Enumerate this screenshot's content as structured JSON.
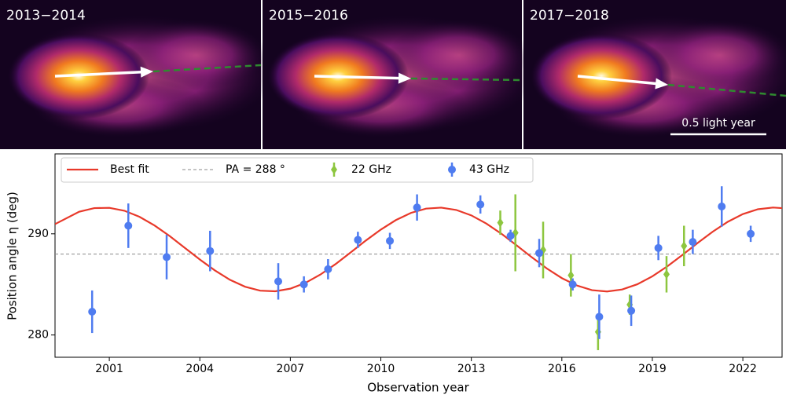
{
  "panels": [
    {
      "label": "2013−2014"
    },
    {
      "label": "2015−2016"
    },
    {
      "label": "2017−2018"
    }
  ],
  "scale_bar": "0.5 light year",
  "chart_data": {
    "type": "scatter",
    "x_label": "Observation year",
    "y_label": "Position angle η (deg)",
    "xlim": [
      1999.2,
      2023.3
    ],
    "ylim": [
      277.8,
      297.9
    ],
    "xticks": [
      2001,
      2004,
      2007,
      2010,
      2013,
      2016,
      2019,
      2022
    ],
    "yticks": [
      280,
      290
    ],
    "hline": {
      "value": 288,
      "label": "PA = 288 °",
      "color": "#888888"
    },
    "fit": {
      "name": "Best fit",
      "color": "#e8392a",
      "x": [
        1999.2,
        2000,
        2000.5,
        2001,
        2001.5,
        2002,
        2002.5,
        2003,
        2003.5,
        2004,
        2004.5,
        2005,
        2005.5,
        2006,
        2006.5,
        2007,
        2007.5,
        2008,
        2008.5,
        2009,
        2009.5,
        2010,
        2010.5,
        2011,
        2011.5,
        2012,
        2012.5,
        2013,
        2013.5,
        2014,
        2014.5,
        2015,
        2015.5,
        2016,
        2016.5,
        2017,
        2017.5,
        2018,
        2018.5,
        2019,
        2019.5,
        2020,
        2020.5,
        2021,
        2021.5,
        2022,
        2022.5,
        2023,
        2023.3
      ],
      "values": [
        290.96,
        292.18,
        292.54,
        292.57,
        292.28,
        291.68,
        290.82,
        289.78,
        288.62,
        287.46,
        286.38,
        285.45,
        284.77,
        284.38,
        284.32,
        284.58,
        285.15,
        285.98,
        287.01,
        288.16,
        289.33,
        290.42,
        291.36,
        292.07,
        292.49,
        292.59,
        292.36,
        291.82,
        291.01,
        290.0,
        288.86,
        287.69,
        286.58,
        285.62,
        284.89,
        284.43,
        284.3,
        284.5,
        285.01,
        285.8,
        286.79,
        287.92,
        289.09,
        290.21,
        291.19,
        291.95,
        292.43,
        292.6,
        292.54
      ]
    },
    "series": [
      {
        "name": "22 GHz",
        "color": "#8dc63f",
        "marker": "diamond",
        "x": [
          2013.96,
          2014.46,
          2015.38,
          2016.3,
          2017.2,
          2018.25,
          2019.47,
          2020.05
        ],
        "values": [
          291.1,
          290.1,
          288.4,
          285.9,
          280.3,
          283.0,
          286.0,
          288.8
        ],
        "errors": [
          1.2,
          3.8,
          2.8,
          2.1,
          1.8,
          1.0,
          1.8,
          2.0
        ]
      },
      {
        "name": "43 GHz",
        "color": "#4f7cf0",
        "marker": "circle",
        "x": [
          2000.43,
          2001.63,
          2002.9,
          2004.34,
          2006.6,
          2007.45,
          2008.25,
          2009.24,
          2010.3,
          2011.2,
          2013.3,
          2014.3,
          2015.25,
          2016.36,
          2017.24,
          2018.3,
          2019.2,
          2020.34,
          2021.3,
          2022.26
        ],
        "values": [
          282.3,
          290.8,
          287.7,
          288.3,
          285.3,
          285.0,
          286.5,
          289.4,
          289.3,
          292.6,
          292.9,
          289.8,
          288.1,
          285.0,
          281.8,
          282.4,
          288.6,
          289.2,
          292.7,
          290.0
        ],
        "errors": [
          2.1,
          2.2,
          2.2,
          2.0,
          1.8,
          0.8,
          1.0,
          0.8,
          0.8,
          1.3,
          0.9,
          0.6,
          1.4,
          0.6,
          2.2,
          1.5,
          1.2,
          1.2,
          2.0,
          0.8
        ]
      }
    ]
  }
}
